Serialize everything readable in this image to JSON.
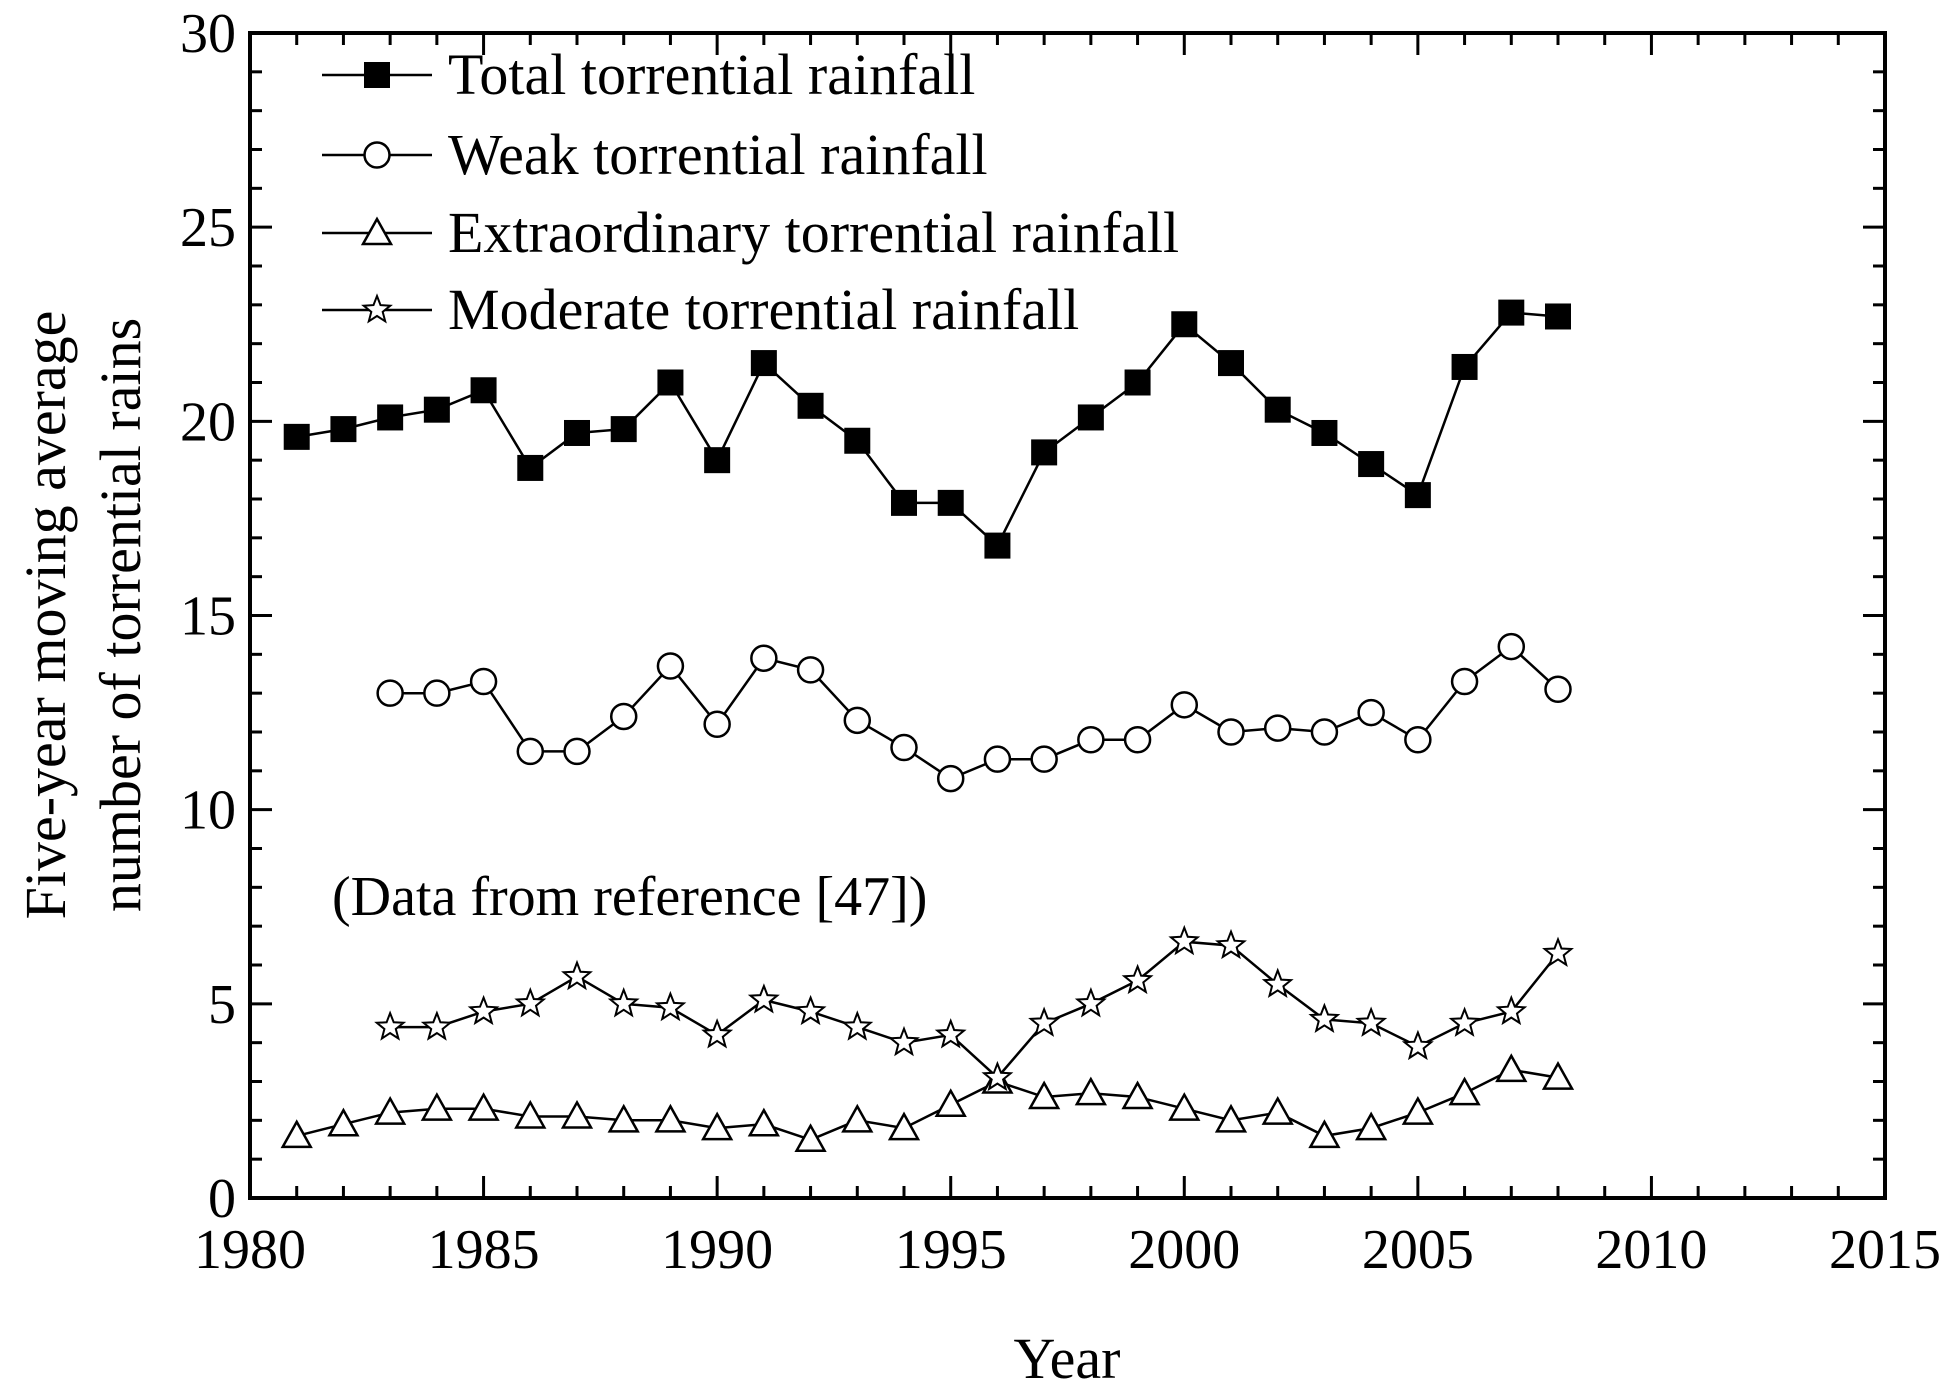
{
  "chart_data": {
    "type": "line",
    "title": "",
    "xlabel": "Year",
    "ylabel": [
      "Five-year moving average",
      "number of torrential rains"
    ],
    "xlim": [
      1980,
      2015
    ],
    "ylim": [
      0,
      30
    ],
    "xticks": [
      "1980",
      "1985",
      "1990",
      "1995",
      "2000",
      "2005",
      "2010",
      "2015"
    ],
    "yticks": [
      "0",
      "5",
      "10",
      "15",
      "20",
      "25",
      "30"
    ],
    "grid": false,
    "legend_position": "top-left",
    "annotation": "(Data from reference [47])",
    "series": [
      {
        "name": "Total torrential rainfall",
        "marker": "square-filled",
        "x": [
          1981,
          1982,
          1983,
          1984,
          1985,
          1986,
          1987,
          1988,
          1989,
          1990,
          1991,
          1992,
          1993,
          1994,
          1995,
          1996,
          1997,
          1998,
          1999,
          2000,
          2001,
          2002,
          2003,
          2004,
          2005,
          2006,
          2007,
          2008
        ],
        "values": [
          19.6,
          19.8,
          20.1,
          20.3,
          20.8,
          18.8,
          19.7,
          19.8,
          21.0,
          19.0,
          21.5,
          20.4,
          19.5,
          17.9,
          17.9,
          16.8,
          19.2,
          20.1,
          21.0,
          22.5,
          21.5,
          20.3,
          19.7,
          18.9,
          18.1,
          21.4,
          22.8,
          22.7
        ]
      },
      {
        "name": "Weak torrential rainfall",
        "marker": "circle-open",
        "x": [
          1983,
          1984,
          1985,
          1986,
          1987,
          1988,
          1989,
          1990,
          1991,
          1992,
          1993,
          1994,
          1995,
          1996,
          1997,
          1998,
          1999,
          2000,
          2001,
          2002,
          2003,
          2004,
          2005,
          2006,
          2007,
          2008
        ],
        "values": [
          13.0,
          13.0,
          13.3,
          11.5,
          11.5,
          12.4,
          13.7,
          12.2,
          13.9,
          13.6,
          12.3,
          11.6,
          10.8,
          11.3,
          11.3,
          11.8,
          11.8,
          12.7,
          12.0,
          12.1,
          12.0,
          12.5,
          11.8,
          13.3,
          14.2,
          13.1
        ]
      },
      {
        "name": "Extraordinary torrential rainfall",
        "marker": "triangle-open",
        "x": [
          1981,
          1982,
          1983,
          1984,
          1985,
          1986,
          1987,
          1988,
          1989,
          1990,
          1991,
          1992,
          1993,
          1994,
          1995,
          1996,
          1997,
          1998,
          1999,
          2000,
          2001,
          2002,
          2003,
          2004,
          2005,
          2006,
          2007,
          2008
        ],
        "values": [
          1.6,
          1.9,
          2.2,
          2.3,
          2.3,
          2.1,
          2.1,
          2.0,
          2.0,
          1.8,
          1.9,
          1.5,
          2.0,
          1.8,
          2.4,
          3.0,
          2.6,
          2.7,
          2.6,
          2.3,
          2.0,
          2.2,
          1.6,
          1.8,
          2.2,
          2.7,
          3.3,
          3.1
        ]
      },
      {
        "name": "Moderate torrential rainfall",
        "marker": "star-open",
        "x": [
          1983,
          1984,
          1985,
          1986,
          1987,
          1988,
          1989,
          1990,
          1991,
          1992,
          1993,
          1994,
          1995,
          1996,
          1997,
          1998,
          1999,
          2000,
          2001,
          2002,
          2003,
          2004,
          2005,
          2006,
          2007,
          2008
        ],
        "values": [
          4.4,
          4.4,
          4.8,
          5.0,
          5.7,
          5.0,
          4.9,
          4.2,
          5.1,
          4.8,
          4.4,
          4.0,
          4.2,
          3.1,
          4.5,
          5.0,
          5.6,
          6.6,
          6.5,
          5.5,
          4.6,
          4.5,
          3.9,
          4.5,
          4.8,
          6.3
        ]
      }
    ]
  }
}
